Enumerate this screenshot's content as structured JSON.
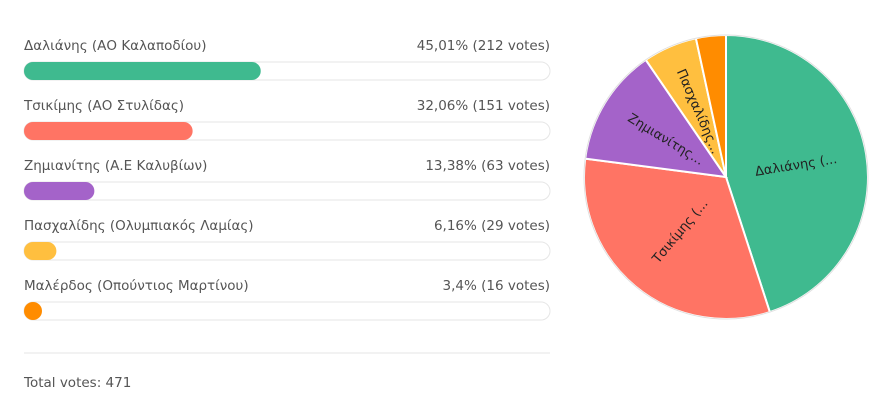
{
  "chart_data": {
    "type": "pie",
    "categories": [
      "Δαλιάνης (ΑΟ Καλαποδίου)",
      "Τσικίμης (ΑΟ Στυλίδας)",
      "Ζημιανίτης (Α.Ε Καλυβίων)",
      "Πασχαλίδης (Ολυμπιακός Λαμίας)",
      "Μαλέρδος (Οπούντιος Μαρτίνου)"
    ],
    "values": [
      45.01,
      32.06,
      13.38,
      6.16,
      3.4
    ],
    "value_labels": [
      "45,01% (212 votes)",
      "32,06% (151 votes)",
      "13,38% (63 votes)",
      "6,16% (29 votes)",
      "3,4% (16 votes)"
    ],
    "slice_labels": [
      "Δαλιάνης (...",
      "Τσικίμης (...",
      "Ζημιανίτης...",
      "Πασχαλίδης...",
      null
    ],
    "colors": [
      "#3fba8f",
      "#ff7464",
      "#a463c9",
      "#ffbf3f",
      "#ff8c00"
    ],
    "footer": "Total votes: 471"
  }
}
